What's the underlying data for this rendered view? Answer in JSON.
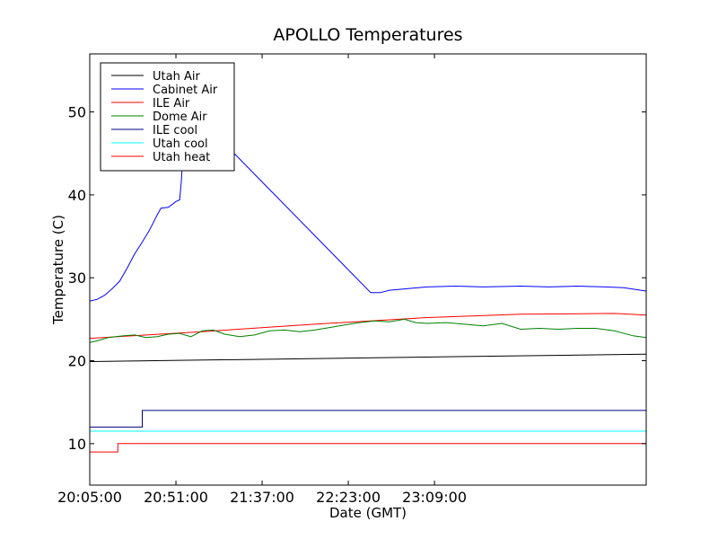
{
  "chart_data": {
    "type": "line",
    "title": "APOLLO Temperatures",
    "xlabel": "Date (GMT)",
    "ylabel": "Temperature (C)",
    "xlim_minutes": [
      0,
      297
    ],
    "ylim": [
      5,
      57
    ],
    "x_ticks": [
      {
        "minute": 0,
        "label": "20:05:00"
      },
      {
        "minute": 46,
        "label": "20:51:00"
      },
      {
        "minute": 92,
        "label": "21:37:00"
      },
      {
        "minute": 138,
        "label": "22:23:00"
      },
      {
        "minute": 184,
        "label": "23:09:00"
      }
    ],
    "y_ticks": [
      10,
      20,
      30,
      40,
      50
    ],
    "legend_position": "top-left",
    "series": [
      {
        "name": "Utah Air",
        "color": "#000000",
        "points": [
          [
            0,
            19.9
          ],
          [
            297,
            20.8
          ]
        ]
      },
      {
        "name": "Cabinet Air",
        "color": "#0000ff",
        "points": [
          [
            0,
            27.2
          ],
          [
            4,
            27.4
          ],
          [
            8,
            27.9
          ],
          [
            12,
            28.7
          ],
          [
            16,
            29.6
          ],
          [
            20,
            31.2
          ],
          [
            24,
            32.9
          ],
          [
            28,
            34.3
          ],
          [
            32,
            35.8
          ],
          [
            36,
            37.6
          ],
          [
            38,
            38.4
          ],
          [
            42,
            38.5
          ],
          [
            46,
            39.2
          ],
          [
            48,
            39.4
          ],
          [
            49,
            42
          ],
          [
            50,
            47
          ],
          [
            50.5,
            50
          ],
          [
            51,
            51
          ],
          [
            150,
            28.2
          ],
          [
            155,
            28.2
          ],
          [
            160,
            28.5
          ],
          [
            170,
            28.7
          ],
          [
            180,
            28.9
          ],
          [
            195,
            29
          ],
          [
            210,
            28.9
          ],
          [
            230,
            29
          ],
          [
            245,
            28.9
          ],
          [
            260,
            29
          ],
          [
            275,
            28.9
          ],
          [
            285,
            28.8
          ],
          [
            297,
            28.4
          ]
        ]
      },
      {
        "name": "ILE Air",
        "color": "#ff0000",
        "points": [
          [
            0,
            22.7
          ],
          [
            60,
            23.5
          ],
          [
            120,
            24.4
          ],
          [
            180,
            25.2
          ],
          [
            230,
            25.6
          ],
          [
            280,
            25.7
          ],
          [
            297,
            25.5
          ]
        ]
      },
      {
        "name": "Dome Air",
        "color": "#008000",
        "points": [
          [
            0,
            22.2
          ],
          [
            4,
            22.4
          ],
          [
            10,
            22.8
          ],
          [
            18,
            23.0
          ],
          [
            24,
            23.1
          ],
          [
            30,
            22.8
          ],
          [
            36,
            22.9
          ],
          [
            42,
            23.2
          ],
          [
            48,
            23.3
          ],
          [
            54,
            22.9
          ],
          [
            60,
            23.6
          ],
          [
            66,
            23.7
          ],
          [
            72,
            23.2
          ],
          [
            80,
            22.9
          ],
          [
            88,
            23.1
          ],
          [
            96,
            23.6
          ],
          [
            104,
            23.7
          ],
          [
            112,
            23.5
          ],
          [
            120,
            23.7
          ],
          [
            128,
            24.0
          ],
          [
            136,
            24.3
          ],
          [
            144,
            24.6
          ],
          [
            152,
            24.8
          ],
          [
            160,
            24.7
          ],
          [
            168,
            25.0
          ],
          [
            174,
            24.6
          ],
          [
            180,
            24.5
          ],
          [
            190,
            24.6
          ],
          [
            200,
            24.4
          ],
          [
            210,
            24.2
          ],
          [
            220,
            24.5
          ],
          [
            230,
            23.8
          ],
          [
            240,
            23.9
          ],
          [
            250,
            23.8
          ],
          [
            260,
            23.9
          ],
          [
            270,
            23.9
          ],
          [
            280,
            23.6
          ],
          [
            290,
            23.0
          ],
          [
            297,
            22.8
          ]
        ]
      },
      {
        "name": "ILE cool",
        "color": "#000080",
        "points": [
          [
            0,
            12.0
          ],
          [
            28,
            12.0
          ],
          [
            28,
            14.0
          ],
          [
            297,
            14.0
          ]
        ]
      },
      {
        "name": "Utah cool",
        "color": "#00ffff",
        "points": [
          [
            0,
            11.5
          ],
          [
            297,
            11.5
          ]
        ]
      },
      {
        "name": "Utah heat",
        "color": "#ff0000",
        "points": [
          [
            0,
            9.0
          ],
          [
            15,
            9.0
          ],
          [
            15,
            10.0
          ],
          [
            297,
            10.0
          ]
        ]
      }
    ]
  }
}
